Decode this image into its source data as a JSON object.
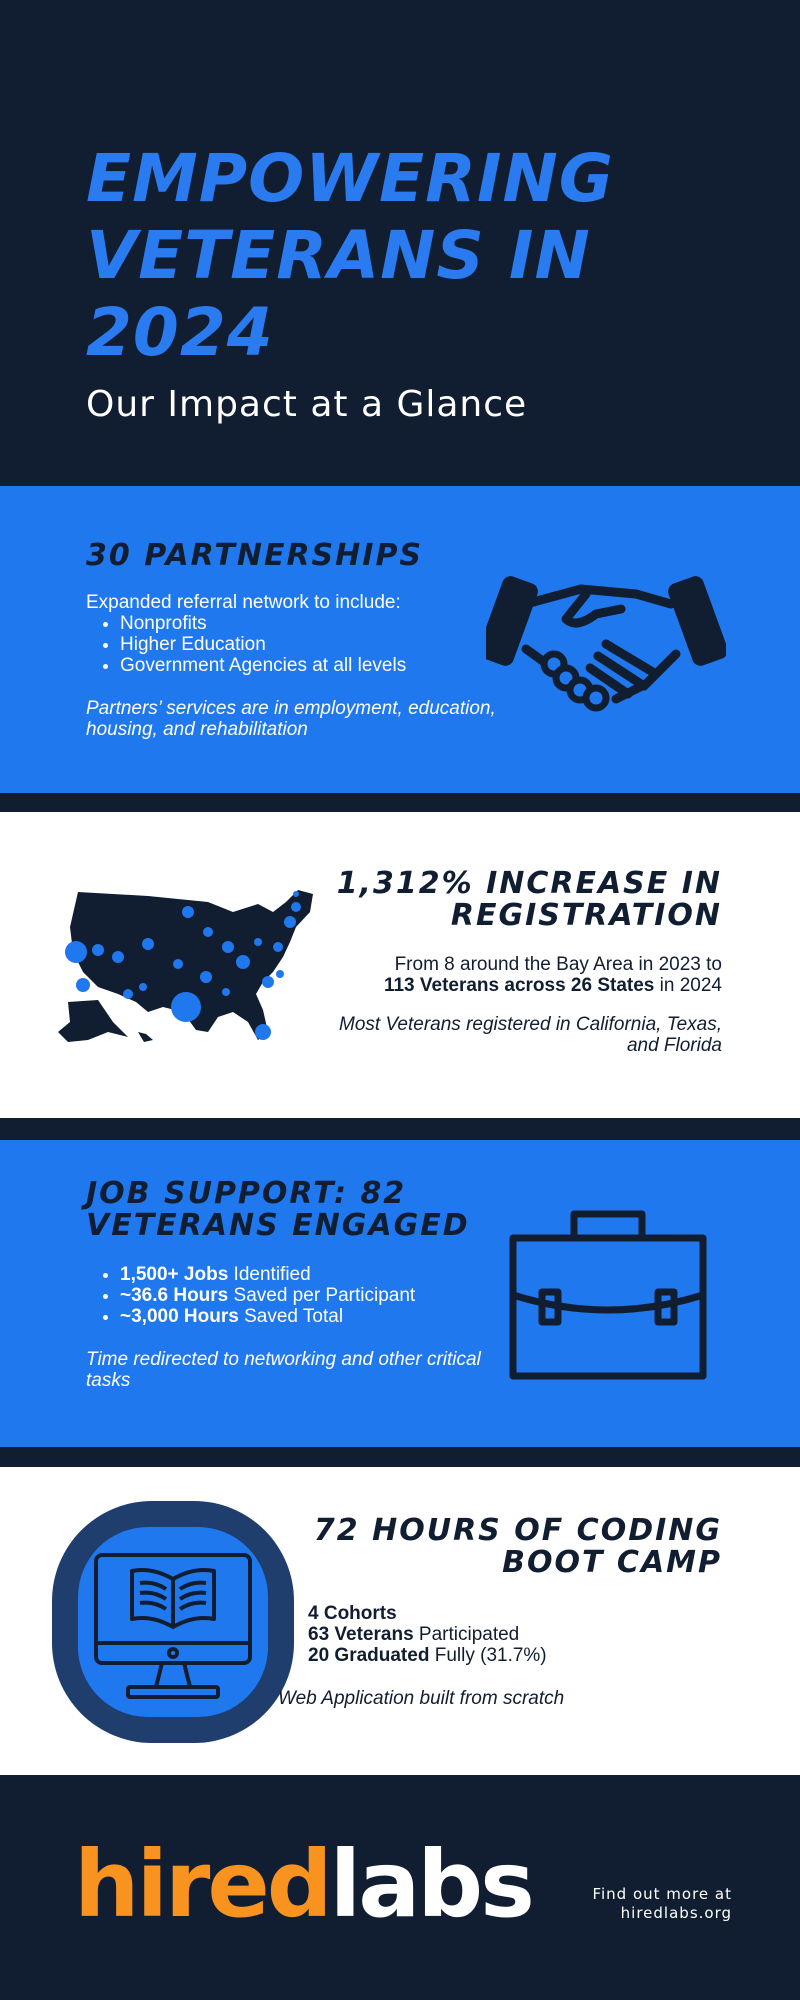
{
  "hero": {
    "title": "EMPOWERING VETERANS IN 2024",
    "subtitle": "Our Impact at a Glance"
  },
  "partnerships": {
    "title": "30 PARTNERSHIPS",
    "intro": "Expanded referral network to include:",
    "items": [
      "Nonprofits",
      "Higher Education",
      "Government Agencies at all levels"
    ],
    "note": "Partners’ services are in employment, education, housing, and rehabilitation",
    "icon": "handshake-icon"
  },
  "registration": {
    "title": "1,312% INCREASE IN REGISTRATION",
    "line1": "From 8 around the Bay Area in 2023 to",
    "line2_bold": "113 Veterans across 26 States",
    "line2_rest": " in 2024",
    "note": "Most Veterans registered in California, Texas, and Florida",
    "icon": "us-map-icon"
  },
  "jobs": {
    "title": "JOB SUPPORT: 82 VETERANS ENGAGED",
    "items": [
      {
        "bold": "1,500+ Jobs",
        "rest": " Identified"
      },
      {
        "bold": "~36.6 Hours",
        "rest": " Saved per Participant"
      },
      {
        "bold": "~3,000 Hours",
        "rest": " Saved Total"
      }
    ],
    "note": "Time redirected to networking and other critical tasks",
    "icon": "briefcase-icon"
  },
  "bootcamp": {
    "title": "72 HOURS OF CODING BOOT CAMP",
    "lines": [
      {
        "bold": "4 Cohorts",
        "rest": ""
      },
      {
        "bold": "63 Veterans",
        "rest": " Participated"
      },
      {
        "bold": "20 Graduated",
        "rest": " Fully (31.7%)"
      }
    ],
    "note": "Web Application built from scratch",
    "icon": "computer-book-icon"
  },
  "footer": {
    "logo_part1": "hired",
    "logo_part2": "labs",
    "find_line1": "Find out more at",
    "find_line2": "hiredlabs.org"
  },
  "colors": {
    "navy": "#111d30",
    "blue": "#1f78ee",
    "orange": "#f7931e",
    "white": "#ffffff"
  }
}
